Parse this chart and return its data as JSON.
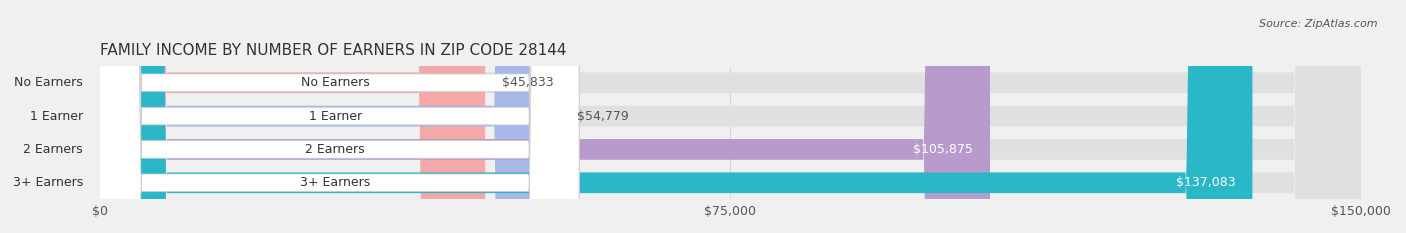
{
  "title": "FAMILY INCOME BY NUMBER OF EARNERS IN ZIP CODE 28144",
  "source": "Source: ZipAtlas.com",
  "categories": [
    "No Earners",
    "1 Earner",
    "2 Earners",
    "3+ Earners"
  ],
  "values": [
    45833,
    54779,
    105875,
    137083
  ],
  "bar_colors": [
    "#f4a8a8",
    "#a8b8e8",
    "#b89acc",
    "#2ab8c8"
  ],
  "bar_colors_dark": [
    "#e08888",
    "#8898c8",
    "#9878b0",
    "#1898a8"
  ],
  "label_colors": [
    "#555555",
    "#555555",
    "#ffffff",
    "#ffffff"
  ],
  "xlim": [
    0,
    150000
  ],
  "xticks": [
    0,
    75000,
    150000
  ],
  "xtick_labels": [
    "$0",
    "$75,000",
    "$150,000"
  ],
  "background_color": "#f0f0f0",
  "bar_bg_color": "#e8e8e8",
  "title_fontsize": 11,
  "source_fontsize": 8,
  "bar_label_fontsize": 9,
  "tick_fontsize": 9,
  "figsize": [
    14.06,
    2.33
  ],
  "dpi": 100
}
